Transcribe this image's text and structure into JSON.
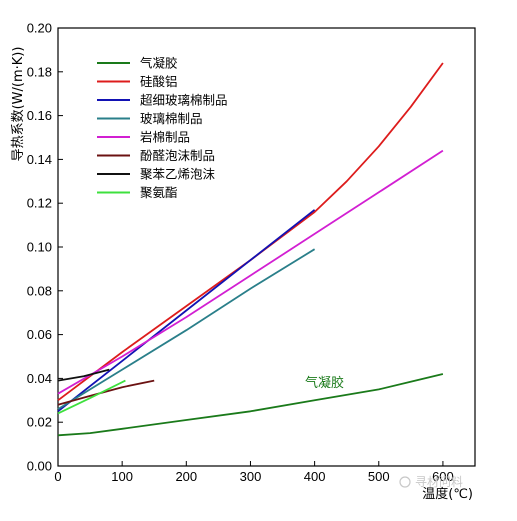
{
  "chart_data": {
    "type": "line",
    "title": "",
    "xlabel": "温度(℃)",
    "ylabel": "导热系数(W/(m·K))",
    "xlim": [
      0,
      650
    ],
    "ylim": [
      0,
      0.2
    ],
    "xticks": [
      0,
      100,
      200,
      300,
      400,
      500,
      600
    ],
    "xtick_labels": [
      "0",
      "100",
      "200",
      "300",
      "400",
      "500",
      "600"
    ],
    "yticks": [
      0.0,
      0.02,
      0.04,
      0.06,
      0.08,
      0.1,
      0.12,
      0.14,
      0.16,
      0.18,
      0.2
    ],
    "ytick_labels": [
      "0.00",
      "0.02",
      "0.04",
      "0.06",
      "0.08",
      "0.10",
      "0.12",
      "0.14",
      "0.16",
      "0.18",
      "0.20"
    ],
    "grid": false,
    "legend_position": "top-left",
    "series": [
      {
        "name": "气凝胶",
        "color": "#1a7a1a",
        "x": [
          0,
          50,
          100,
          200,
          300,
          400,
          500,
          600
        ],
        "y": [
          0.014,
          0.015,
          0.017,
          0.021,
          0.025,
          0.03,
          0.035,
          0.042
        ]
      },
      {
        "name": "硅酸铝",
        "color": "#dd1c1c",
        "x": [
          0,
          100,
          200,
          300,
          400,
          450,
          500,
          550,
          600
        ],
        "y": [
          0.03,
          0.052,
          0.073,
          0.094,
          0.116,
          0.13,
          0.146,
          0.164,
          0.184
        ]
      },
      {
        "name": "超细玻璃棉制品",
        "color": "#1212b4",
        "x": [
          0,
          100,
          200,
          300,
          400
        ],
        "y": [
          0.025,
          0.048,
          0.071,
          0.094,
          0.117
        ]
      },
      {
        "name": "玻璃棉制品",
        "color": "#2a7f8a",
        "x": [
          0,
          100,
          200,
          300,
          400
        ],
        "y": [
          0.026,
          0.044,
          0.062,
          0.081,
          0.099
        ]
      },
      {
        "name": "岩棉制品",
        "color": "#d21fd2",
        "x": [
          0,
          100,
          200,
          300,
          400,
          500,
          600
        ],
        "y": [
          0.033,
          0.05,
          0.068,
          0.087,
          0.106,
          0.125,
          0.144
        ]
      },
      {
        "name": "酚醛泡沫制品",
        "color": "#6b1212",
        "x": [
          0,
          50,
          100,
          150
        ],
        "y": [
          0.028,
          0.032,
          0.036,
          0.039
        ]
      },
      {
        "name": "聚苯乙烯泡沫",
        "color": "#111111",
        "x": [
          0,
          40,
          80
        ],
        "y": [
          0.039,
          0.041,
          0.044
        ]
      },
      {
        "name": "聚氨酯",
        "color": "#3ee03e",
        "x": [
          0,
          50,
          105
        ],
        "y": [
          0.024,
          0.031,
          0.039
        ]
      }
    ],
    "annotations": [
      {
        "text": "气凝胶",
        "x": 385,
        "y": 0.036,
        "color": "#1a7a1a"
      }
    ]
  },
  "watermark": "寻材问料"
}
